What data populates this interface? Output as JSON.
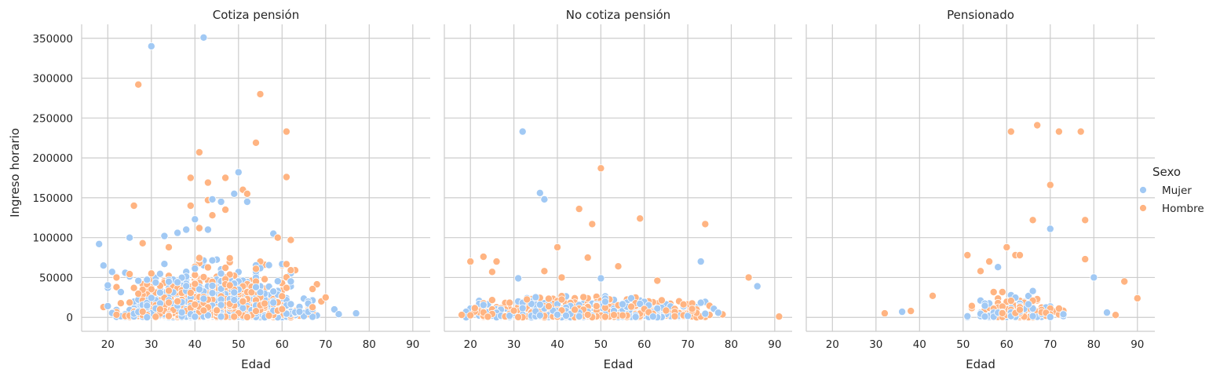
{
  "chart_data": {
    "type": "scatter",
    "facet_by": "panels",
    "xlabel": "Edad",
    "ylabel": "Ingreso horario",
    "xlim": [
      14,
      94
    ],
    "ylim": [
      -17500,
      367500
    ],
    "xticks": [
      20,
      30,
      40,
      50,
      60,
      70,
      80,
      90
    ],
    "yticks": [
      0,
      50000,
      100000,
      150000,
      200000,
      250000,
      300000,
      350000
    ],
    "grid": true,
    "legend": {
      "title": "Sexo",
      "placement": "right",
      "entries": [
        {
          "name": "Mujer",
          "color": "#a1c9f4"
        },
        {
          "name": "Hombre",
          "color": "#ffb482"
        }
      ]
    },
    "panels": [
      {
        "title": "Cotiza pensión",
        "notable_points": [
          {
            "sexo": "Mujer",
            "x": 18,
            "y": 92000
          },
          {
            "sexo": "Mujer",
            "x": 19,
            "y": 65000
          },
          {
            "sexo": "Mujer",
            "x": 21,
            "y": 57000
          },
          {
            "sexo": "Hombre",
            "x": 22,
            "y": 50000
          },
          {
            "sexo": "Mujer",
            "x": 25,
            "y": 100000
          },
          {
            "sexo": "Hombre",
            "x": 26,
            "y": 140000
          },
          {
            "sexo": "Hombre",
            "x": 27,
            "y": 292000
          },
          {
            "sexo": "Hombre",
            "x": 28,
            "y": 93000
          },
          {
            "sexo": "Mujer",
            "x": 30,
            "y": 340000
          },
          {
            "sexo": "Mujer",
            "x": 33,
            "y": 102000
          },
          {
            "sexo": "Hombre",
            "x": 34,
            "y": 88000
          },
          {
            "sexo": "Mujer",
            "x": 36,
            "y": 106000
          },
          {
            "sexo": "Mujer",
            "x": 38,
            "y": 110000
          },
          {
            "sexo": "Hombre",
            "x": 39,
            "y": 175000
          },
          {
            "sexo": "Hombre",
            "x": 39,
            "y": 140000
          },
          {
            "sexo": "Mujer",
            "x": 40,
            "y": 123000
          },
          {
            "sexo": "Hombre",
            "x": 41,
            "y": 207000
          },
          {
            "sexo": "Hombre",
            "x": 41,
            "y": 112000
          },
          {
            "sexo": "Mujer",
            "x": 42,
            "y": 351000
          },
          {
            "sexo": "Hombre",
            "x": 43,
            "y": 169000
          },
          {
            "sexo": "Hombre",
            "x": 43,
            "y": 147000
          },
          {
            "sexo": "Mujer",
            "x": 43,
            "y": 110000
          },
          {
            "sexo": "Mujer",
            "x": 44,
            "y": 148000
          },
          {
            "sexo": "Hombre",
            "x": 44,
            "y": 128000
          },
          {
            "sexo": "Mujer",
            "x": 46,
            "y": 145000
          },
          {
            "sexo": "Hombre",
            "x": 47,
            "y": 175000
          },
          {
            "sexo": "Hombre",
            "x": 47,
            "y": 135000
          },
          {
            "sexo": "Mujer",
            "x": 49,
            "y": 155000
          },
          {
            "sexo": "Mujer",
            "x": 50,
            "y": 182000
          },
          {
            "sexo": "Hombre",
            "x": 51,
            "y": 160000
          },
          {
            "sexo": "Hombre",
            "x": 52,
            "y": 155000
          },
          {
            "sexo": "Mujer",
            "x": 52,
            "y": 145000
          },
          {
            "sexo": "Hombre",
            "x": 54,
            "y": 219000
          },
          {
            "sexo": "Hombre",
            "x": 55,
            "y": 280000
          },
          {
            "sexo": "Mujer",
            "x": 58,
            "y": 105000
          },
          {
            "sexo": "Hombre",
            "x": 59,
            "y": 100000
          },
          {
            "sexo": "Hombre",
            "x": 61,
            "y": 233000
          },
          {
            "sexo": "Hombre",
            "x": 61,
            "y": 176000
          },
          {
            "sexo": "Hombre",
            "x": 62,
            "y": 97000
          },
          {
            "sexo": "Hombre",
            "x": 69,
            "y": 20000
          },
          {
            "sexo": "Hombre",
            "x": 70,
            "y": 25000
          },
          {
            "sexo": "Mujer",
            "x": 72,
            "y": 10000
          },
          {
            "sexo": "Mujer",
            "x": 73,
            "y": 4000
          },
          {
            "sexo": "Mujer",
            "x": 77,
            "y": 5000
          }
        ]
      },
      {
        "title": "No cotiza pensión",
        "notable_points": [
          {
            "sexo": "Hombre",
            "x": 20,
            "y": 70000
          },
          {
            "sexo": "Hombre",
            "x": 23,
            "y": 76000
          },
          {
            "sexo": "Hombre",
            "x": 25,
            "y": 57000
          },
          {
            "sexo": "Hombre",
            "x": 26,
            "y": 70000
          },
          {
            "sexo": "Mujer",
            "x": 31,
            "y": 49000
          },
          {
            "sexo": "Mujer",
            "x": 32,
            "y": 233000
          },
          {
            "sexo": "Mujer",
            "x": 36,
            "y": 156000
          },
          {
            "sexo": "Mujer",
            "x": 37,
            "y": 148000
          },
          {
            "sexo": "Hombre",
            "x": 37,
            "y": 58000
          },
          {
            "sexo": "Hombre",
            "x": 40,
            "y": 88000
          },
          {
            "sexo": "Hombre",
            "x": 41,
            "y": 50000
          },
          {
            "sexo": "Hombre",
            "x": 45,
            "y": 136000
          },
          {
            "sexo": "Hombre",
            "x": 47,
            "y": 75000
          },
          {
            "sexo": "Hombre",
            "x": 48,
            "y": 117000
          },
          {
            "sexo": "Hombre",
            "x": 50,
            "y": 187000
          },
          {
            "sexo": "Mujer",
            "x": 50,
            "y": 49000
          },
          {
            "sexo": "Hombre",
            "x": 54,
            "y": 64000
          },
          {
            "sexo": "Hombre",
            "x": 59,
            "y": 124000
          },
          {
            "sexo": "Hombre",
            "x": 63,
            "y": 46000
          },
          {
            "sexo": "Mujer",
            "x": 73,
            "y": 70000
          },
          {
            "sexo": "Hombre",
            "x": 74,
            "y": 117000
          },
          {
            "sexo": "Hombre",
            "x": 84,
            "y": 50000
          },
          {
            "sexo": "Mujer",
            "x": 86,
            "y": 39000
          },
          {
            "sexo": "Hombre",
            "x": 91,
            "y": 1000
          }
        ]
      },
      {
        "title": "Pensionado",
        "notable_points": [
          {
            "sexo": "Hombre",
            "x": 32,
            "y": 5000
          },
          {
            "sexo": "Mujer",
            "x": 36,
            "y": 7000
          },
          {
            "sexo": "Hombre",
            "x": 38,
            "y": 8000
          },
          {
            "sexo": "Hombre",
            "x": 43,
            "y": 27000
          },
          {
            "sexo": "Hombre",
            "x": 51,
            "y": 78000
          },
          {
            "sexo": "Hombre",
            "x": 54,
            "y": 58000
          },
          {
            "sexo": "Hombre",
            "x": 56,
            "y": 70000
          },
          {
            "sexo": "Mujer",
            "x": 58,
            "y": 63000
          },
          {
            "sexo": "Hombre",
            "x": 60,
            "y": 88000
          },
          {
            "sexo": "Hombre",
            "x": 61,
            "y": 233000
          },
          {
            "sexo": "Hombre",
            "x": 62,
            "y": 78000
          },
          {
            "sexo": "Hombre",
            "x": 63,
            "y": 78000
          },
          {
            "sexo": "Hombre",
            "x": 66,
            "y": 122000
          },
          {
            "sexo": "Hombre",
            "x": 67,
            "y": 241000
          },
          {
            "sexo": "Hombre",
            "x": 70,
            "y": 166000
          },
          {
            "sexo": "Mujer",
            "x": 70,
            "y": 111000
          },
          {
            "sexo": "Hombre",
            "x": 72,
            "y": 233000
          },
          {
            "sexo": "Hombre",
            "x": 77,
            "y": 233000
          },
          {
            "sexo": "Hombre",
            "x": 78,
            "y": 122000
          },
          {
            "sexo": "Hombre",
            "x": 78,
            "y": 73000
          },
          {
            "sexo": "Mujer",
            "x": 80,
            "y": 50000
          },
          {
            "sexo": "Mujer",
            "x": 83,
            "y": 6000
          },
          {
            "sexo": "Hombre",
            "x": 85,
            "y": 3000
          },
          {
            "sexo": "Hombre",
            "x": 87,
            "y": 45000
          },
          {
            "sexo": "Hombre",
            "x": 90,
            "y": 24000
          }
        ]
      }
    ]
  }
}
